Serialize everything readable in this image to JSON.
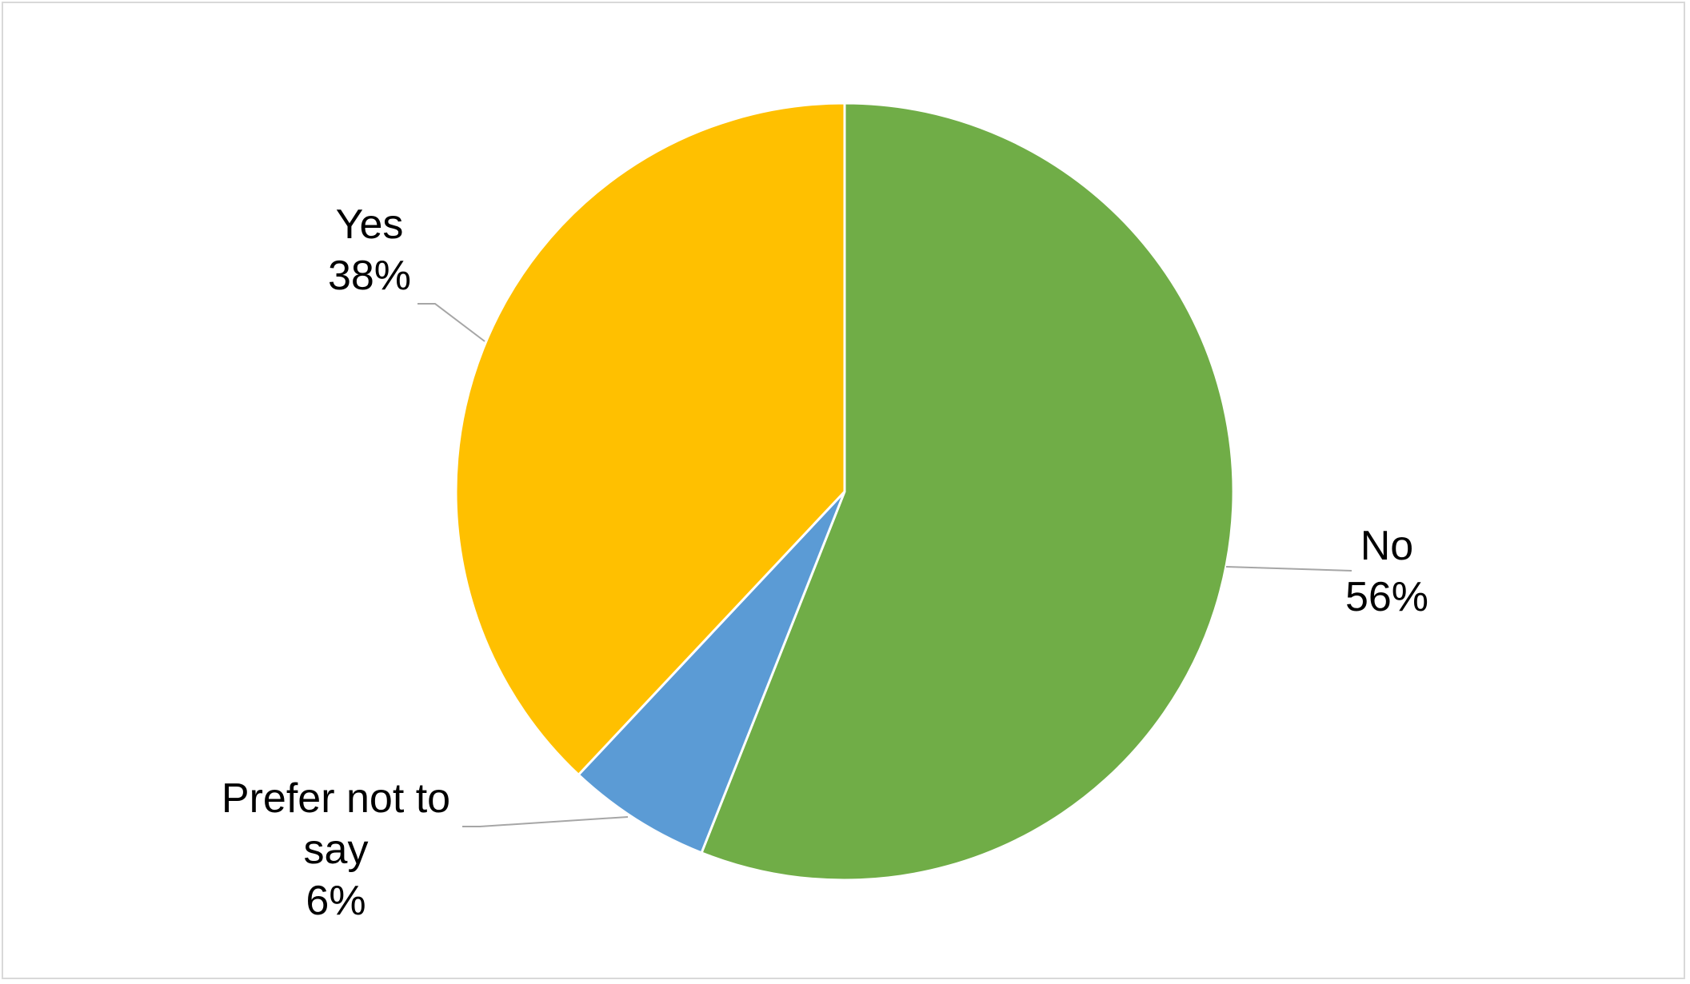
{
  "chart_data": {
    "type": "pie",
    "title": "",
    "slices": [
      {
        "label": "No",
        "label_lines": [
          "No"
        ],
        "value": 56,
        "value_label": "56%",
        "color": "#70AD47"
      },
      {
        "label": "Prefer not to say",
        "label_lines": [
          "Prefer not to",
          "say"
        ],
        "value": 6,
        "value_label": "6%",
        "color": "#5B9BD5"
      },
      {
        "label": "Yes",
        "label_lines": [
          "Yes"
        ],
        "value": 38,
        "value_label": "38%",
        "color": "#FFC000"
      }
    ],
    "start_angle_deg": 0,
    "direction": "clockwise",
    "legend": "none",
    "leader_line_color": "#a6a6a6",
    "slice_border_color": "#ffffff"
  }
}
